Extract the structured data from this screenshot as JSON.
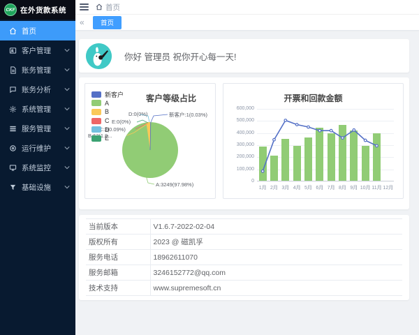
{
  "app": {
    "logo_text": "CKF",
    "title": "在外货款系统"
  },
  "colors": {
    "accent_blue": "#409eff",
    "sidebar_bg": "#081a30",
    "series_blue": "#5470c6",
    "series_green": "#91cc75",
    "series_yellow": "#fac858",
    "series_red": "#ee6666",
    "series_lightblue": "#73c0de",
    "series_teal": "#3ba272",
    "avatar_teal": "#40c9c6"
  },
  "sidebar": {
    "items": [
      {
        "label": "首页",
        "icon": "home-icon",
        "active": true,
        "expandable": false
      },
      {
        "label": "客户管理",
        "icon": "customer-icon",
        "active": false,
        "expandable": true
      },
      {
        "label": "账务管理",
        "icon": "document-icon",
        "active": false,
        "expandable": true
      },
      {
        "label": "账务分析",
        "icon": "chat-icon",
        "active": false,
        "expandable": true
      },
      {
        "label": "系统管理",
        "icon": "gear-icon",
        "active": false,
        "expandable": true
      },
      {
        "label": "服务管理",
        "icon": "list-icon",
        "active": false,
        "expandable": true
      },
      {
        "label": "运行维护",
        "icon": "circle-icon",
        "active": false,
        "expandable": true
      },
      {
        "label": "系统监控",
        "icon": "monitor-icon",
        "active": false,
        "expandable": true
      },
      {
        "label": "基础设施",
        "icon": "filter-icon",
        "active": false,
        "expandable": true
      }
    ]
  },
  "header": {
    "breadcrumb_home": "首页"
  },
  "tabs": {
    "left_arrow": "«",
    "active_tab": "首页"
  },
  "greeting": {
    "text": "你好 管理员 祝你开心每一天!"
  },
  "chart_data": [
    {
      "type": "pie",
      "title": "客户等级占比",
      "legend_position": "left",
      "series": [
        {
          "name": "新客户",
          "value": 1,
          "percent": "0.03%",
          "color": "#5470c6"
        },
        {
          "name": "A",
          "value": 3249,
          "percent": "97.98%",
          "color": "#91cc75"
        },
        {
          "name": "B",
          "value": 63,
          "percent": "1.90%",
          "color": "#fac858"
        },
        {
          "name": "C",
          "value": 3,
          "percent": "0.09%",
          "color": "#ee6666"
        },
        {
          "name": "D",
          "value": 0,
          "percent": "0%",
          "color": "#73c0de"
        },
        {
          "name": "E",
          "value": 0,
          "percent": "0%",
          "color": "#3ba272"
        }
      ],
      "labels": {
        "d": "D:0(0%)",
        "new": "新客户:1(0.03%)",
        "e": "E:0(0%)",
        "c": "C:3(0.09%)",
        "b": "B:63(1.9...",
        "a": "A:3249(97.98%)"
      }
    },
    {
      "type": "bar+line",
      "title": "开票和回款金额",
      "categories": [
        "1月",
        "2月",
        "3月",
        "4月",
        "5月",
        "6月",
        "7月",
        "8月",
        "9月",
        "10月",
        "11月",
        "12月"
      ],
      "series": [
        {
          "name": "开票",
          "type": "bar",
          "color": "#91cc75",
          "values": [
            285000,
            210000,
            345000,
            290000,
            360000,
            440000,
            390000,
            460000,
            415000,
            290000,
            395000,
            0
          ]
        },
        {
          "name": "回款",
          "type": "line",
          "color": "#5470c6",
          "values": [
            85000,
            345000,
            505000,
            470000,
            450000,
            420000,
            420000,
            360000,
            425000,
            340000,
            295000,
            null
          ]
        }
      ],
      "ylim": [
        0,
        600000
      ],
      "y_interval": 100000,
      "grid": true,
      "legend_position": "none"
    }
  ],
  "info_table": {
    "rows": [
      {
        "label": "当前版本",
        "value": "V1.6.7-2022-02-04"
      },
      {
        "label": "版权所有",
        "value": "2023 @ 磁凯孚"
      },
      {
        "label": "服务电话",
        "value": "18962611070"
      },
      {
        "label": "服务邮箱",
        "value": "3246152772@qq.com"
      },
      {
        "label": "技术支持",
        "value": "www.supremesoft.cn"
      }
    ]
  }
}
